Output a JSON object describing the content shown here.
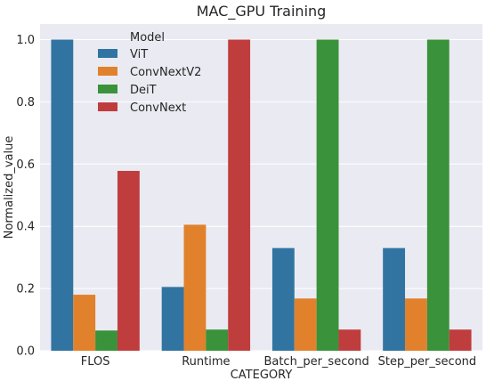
{
  "chart_data": {
    "type": "bar",
    "title": "MAC_GPU Training",
    "xlabel": "CATEGORY",
    "ylabel": "Normalized_value",
    "categories": [
      "FLOS",
      "Runtime",
      "Batch_per_second",
      "Step_per_second"
    ],
    "ylim": [
      0,
      1.05
    ],
    "yticks": [
      "0.0",
      "0.2",
      "0.4",
      "0.6",
      "0.8",
      "1.0"
    ],
    "grid": true,
    "legend": {
      "title": "Model",
      "placement": "top-left"
    },
    "series": [
      {
        "name": "ViT",
        "color": "#3274a1",
        "values": [
          1.0,
          0.205,
          0.33,
          0.33
        ]
      },
      {
        "name": "ConvNextV2",
        "color": "#e1812c",
        "values": [
          0.18,
          0.405,
          0.168,
          0.168
        ]
      },
      {
        "name": "DeiT",
        "color": "#3a923a",
        "values": [
          0.065,
          0.068,
          1.0,
          1.0
        ]
      },
      {
        "name": "ConvNext",
        "color": "#c03d3e",
        "values": [
          0.578,
          1.0,
          0.068,
          0.068
        ]
      }
    ],
    "background": "#eaeaf2",
    "gridColor": "#ffffff"
  }
}
